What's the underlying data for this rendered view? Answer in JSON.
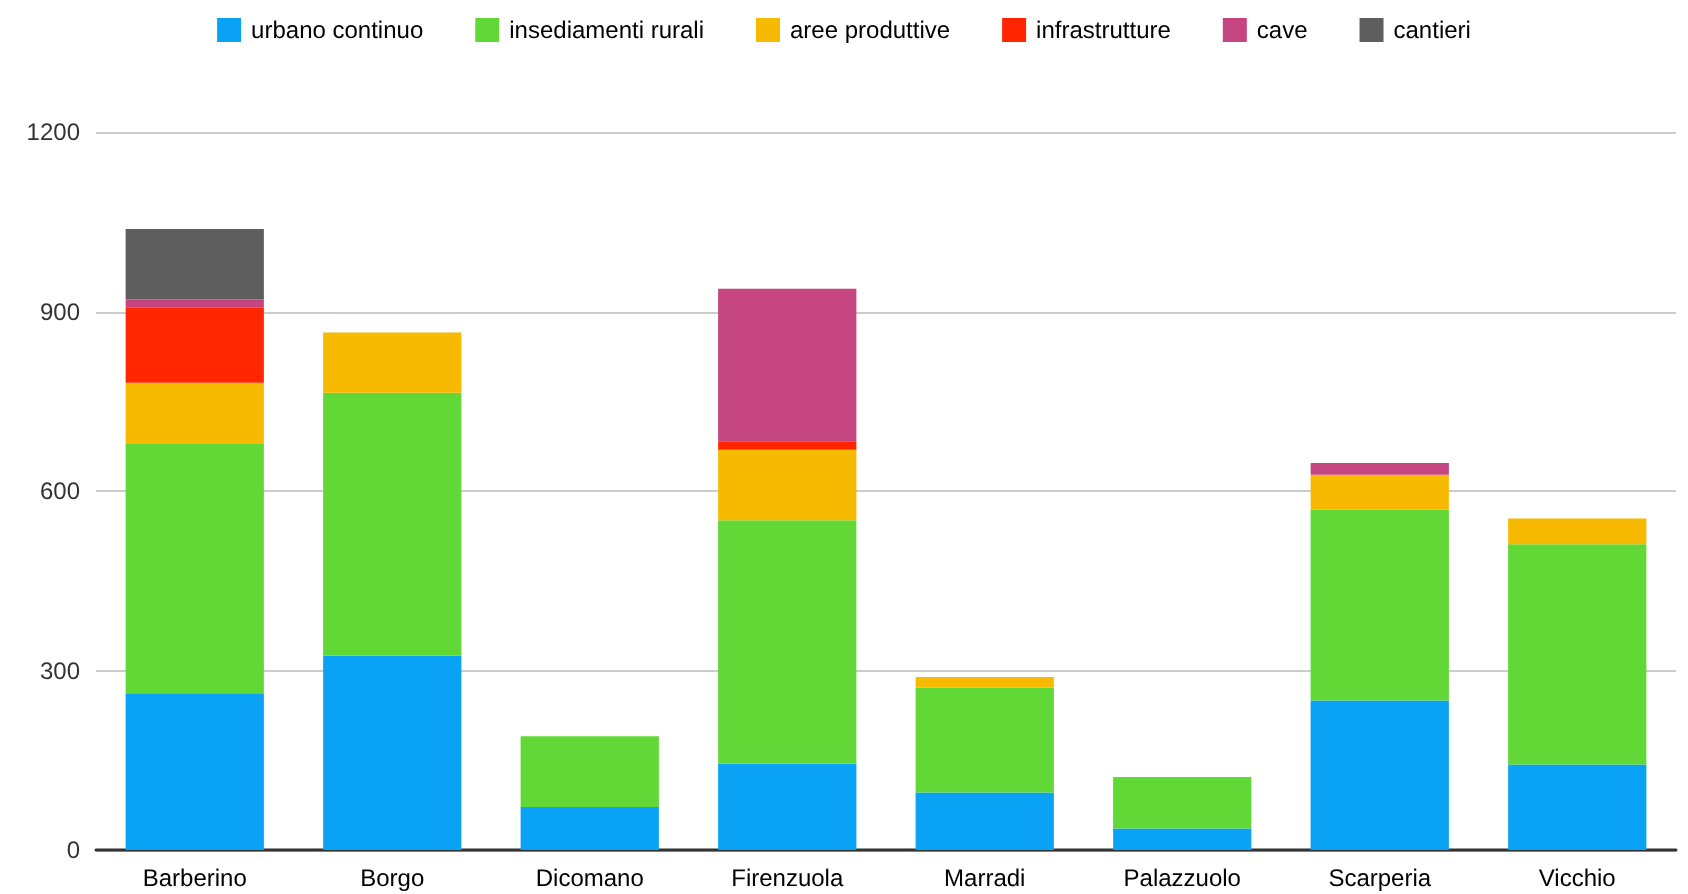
{
  "chart_data": {
    "type": "bar",
    "stacked": true,
    "categories": [
      "Barberino",
      "Borgo",
      "Dicomano",
      "Firenzuola",
      "Marradi",
      "Palazzuolo",
      "Scarperia",
      "Vicchio"
    ],
    "series": [
      {
        "name": "urbano continuo",
        "color": "#0aa2f5",
        "values": [
          262,
          325,
          72,
          144,
          96,
          36,
          250,
          143
        ]
      },
      {
        "name": "insediamenti rurali",
        "color": "#61d836",
        "values": [
          418,
          439,
          118,
          407,
          175,
          86,
          319,
          368
        ]
      },
      {
        "name": "aree produttive",
        "color": "#f8ba00",
        "values": [
          101,
          101,
          null,
          118,
          18,
          null,
          58,
          43
        ]
      },
      {
        "name": "infrastrutture",
        "color": "#ff2600",
        "values": [
          126,
          null,
          null,
          14,
          null,
          null,
          null,
          null
        ]
      },
      {
        "name": "cave",
        "color": "#c4457f",
        "values": [
          13,
          null,
          null,
          255,
          null,
          null,
          20,
          null
        ]
      },
      {
        "name": "cantieri",
        "color": "#5e5e5e",
        "values": [
          118,
          null,
          null,
          null,
          null,
          null,
          null,
          null
        ]
      }
    ],
    "ylim": [
      0,
      1200
    ],
    "yticks": [
      0,
      300,
      600,
      900,
      1200
    ],
    "grid": "y",
    "legend": "top"
  }
}
